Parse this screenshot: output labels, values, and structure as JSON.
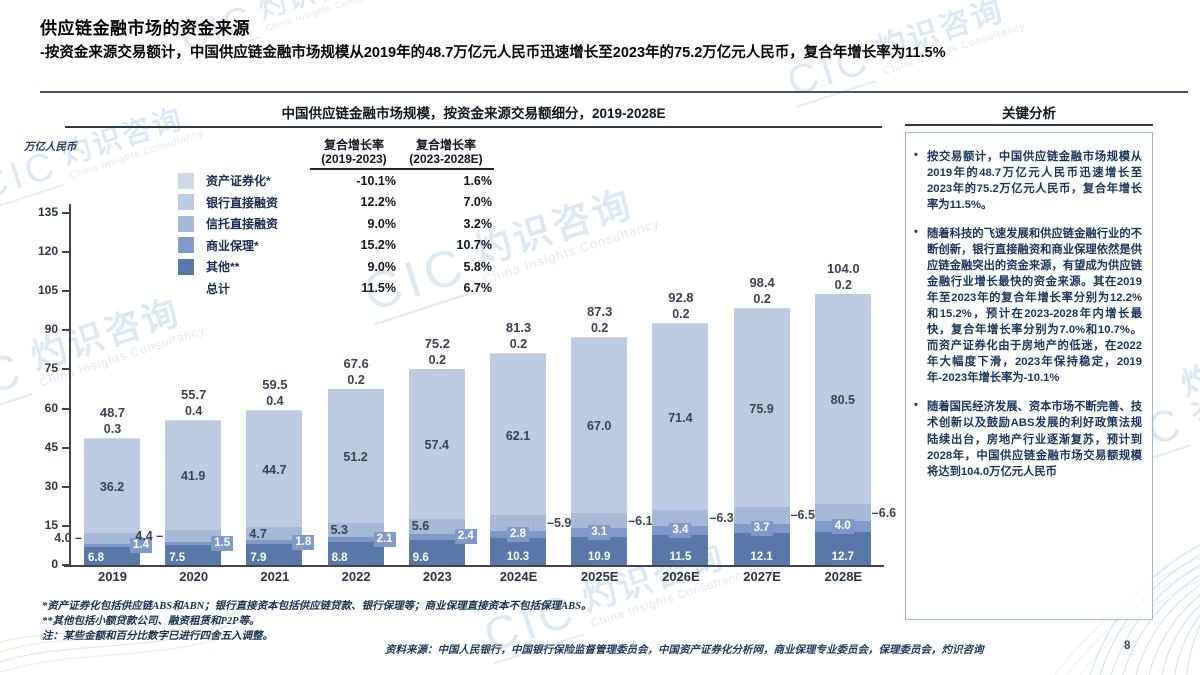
{
  "page": {
    "title": "供应链金融市场的资金来源",
    "subtitle": "-按资金来源交易额计，中国供应链金融市场规模从2019年的48.7万亿元人民币迅速增长至2023年的75.2万亿元人民币，复合年增长率为11.5%",
    "page_number": "8",
    "source": "资料来源：中国人民银行，中国银行保险监督管理委员会，中国资产证券化分析网，商业保理专业委员会，保理委员会，灼识咨询",
    "footnotes": [
      "*资产证券化包括供应链ABS和ABN；银行直接资本包括供应链贷款、银行保理等；商业保理直接资本不包括保理ABS。",
      "**其他包括小额贷款公司、融资租赁和P2P等。",
      "注：某些金额和百分比数字已进行四舍五入调整。"
    ]
  },
  "watermark": {
    "brand": "CIC",
    "cn": "灼识咨询",
    "en": "China Insights Consultancy"
  },
  "chart": {
    "title": "中国供应链金融市场规模，按资金来源交易额细分，2019-2028E",
    "unit_label": "万亿人民币",
    "y_ticks": [
      0,
      15,
      30,
      45,
      60,
      75,
      90,
      105,
      120,
      135
    ],
    "cagr_cols": [
      {
        "title": "复合增长率",
        "period": "(2019-2023)"
      },
      {
        "title": "复合增长率",
        "period": "(2023-2028E)"
      }
    ],
    "total_row": {
      "label": "总计",
      "cagr1": "11.5%",
      "cagr2": "6.7%"
    }
  },
  "chart_data": {
    "type": "bar",
    "stacked": true,
    "title": "中国供应链金融市场规模，按资金来源交易额细分，2019-2028E",
    "ylabel": "万亿人民币",
    "ylim": [
      0,
      135
    ],
    "y_tick_step": 15,
    "grid": false,
    "legend_position": "upper-left",
    "categories": [
      "2019",
      "2020",
      "2021",
      "2022",
      "2023",
      "2024E",
      "2025E",
      "2026E",
      "2027E",
      "2028E"
    ],
    "series": [
      {
        "name": "资产证券化*",
        "color": "#cfd8e6",
        "cagr_2019_2023": "-10.1%",
        "cagr_2023_2028e": "1.6%",
        "values": [
          0.3,
          0.4,
          0.4,
          0.2,
          0.2,
          0.2,
          0.2,
          0.2,
          0.2,
          0.2
        ]
      },
      {
        "name": "银行直接融资",
        "color": "#bdcbe2",
        "cagr_2019_2023": "12.2%",
        "cagr_2023_2028e": "7.0%",
        "values": [
          36.2,
          41.9,
          44.7,
          51.2,
          57.4,
          62.1,
          67.0,
          71.4,
          75.9,
          80.5
        ]
      },
      {
        "name": "信托直接融资",
        "color": "#a6bad8",
        "cagr_2019_2023": "9.0%",
        "cagr_2023_2028e": "3.2%",
        "values": [
          4.0,
          4.4,
          4.7,
          5.3,
          5.6,
          5.9,
          6.1,
          6.3,
          6.5,
          6.6
        ]
      },
      {
        "name": "商业保理*",
        "color": "#7e9ac8",
        "cagr_2019_2023": "15.2%",
        "cagr_2023_2028e": "10.7%",
        "values": [
          1.4,
          1.5,
          1.8,
          2.1,
          2.4,
          2.8,
          3.1,
          3.4,
          3.7,
          4.0
        ]
      },
      {
        "name": "其他**",
        "color": "#5878a8",
        "cagr_2019_2023": "9.0%",
        "cagr_2023_2028e": "5.8%",
        "values": [
          6.8,
          7.5,
          7.9,
          8.8,
          9.6,
          10.3,
          10.9,
          11.5,
          12.1,
          12.7
        ]
      }
    ],
    "totals": [
      48.7,
      55.7,
      59.5,
      67.6,
      75.2,
      81.3,
      87.3,
      92.8,
      98.4,
      104.0
    ],
    "total_cagr": {
      "2019_2023": "11.5%",
      "2023_2028e": "6.7%"
    }
  },
  "analysis": {
    "header": "关键分析",
    "bullets": [
      "按交易额计，中国供应链金融市场规模从2019年的48.7万亿元人民币迅速增长至2023年的75.2万亿元人民币，复合年增长率为11.5%。",
      "随着科技的飞速发展和供应链金融行业的不断创新，银行直接融资和商业保理依然是供应链金融突出的资金来源，有望成为供应链金融行业增长最快的资金来源。其在2019年至2023年的复合年增长率分别为12.2%和15.2%，预计在2023-2028年内增长最快，复合年增长率分别为7.0%和10.7%。而资产证券化由于房地产的低迷，在2022年大幅度下滑，2023年保持稳定，2019年-2023年增长率为-10.1%",
      "随着国民经济发展、资本市场不断完善、技术创新以及鼓励ABS发展的利好政策法规陆续出台，房地产行业逐渐复苏，预计到2028年，中国供应链金融市场交易额规模将达到104.0万亿元人民币"
    ]
  }
}
